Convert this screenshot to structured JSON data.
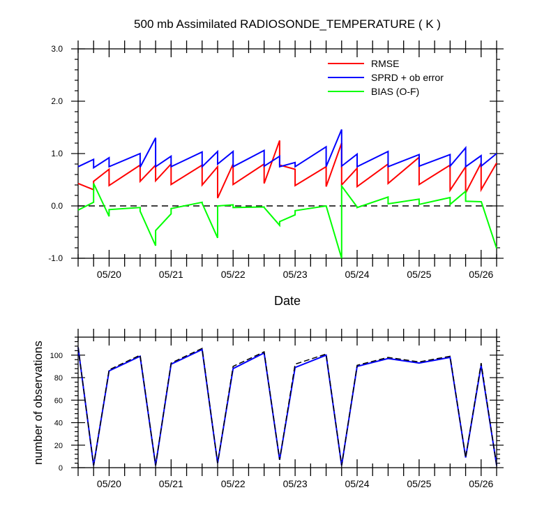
{
  "chart_data": [
    {
      "type": "line",
      "title": "500 mb Assimilated RADIOSONDE_TEMPERATURE ( K )",
      "xlabel": "Date",
      "ylabel": "",
      "ylim": [
        -1.0,
        3.0
      ],
      "yticks": [
        -1.0,
        0.0,
        1.0,
        2.0,
        3.0
      ],
      "ytick_labels": [
        "-1.0",
        "0.0",
        "1.0",
        "2.0",
        "3.0"
      ],
      "xlim": [
        "2014-05-19 12:00",
        "2014-05-26 06:00"
      ],
      "xtick_labels": [
        "05/20",
        "05/21",
        "05/22",
        "05/23",
        "05/24",
        "05/25",
        "05/26"
      ],
      "legend_position": "top-right",
      "reference_line": {
        "y": 0.0,
        "style": "dashed",
        "color": "#000000"
      },
      "series": [
        {
          "name": "RMSE",
          "color": "#ff0000",
          "x": [
            "2014-05-19 12:00",
            "2014-05-19 18:00",
            "2014-05-19 18:00",
            "2014-05-20 00:00",
            "2014-05-20 00:00",
            "2014-05-20 12:00",
            "2014-05-20 12:00",
            "2014-05-20 18:00",
            "2014-05-20 18:00",
            "2014-05-21 00:00",
            "2014-05-21 00:00",
            "2014-05-21 12:00",
            "2014-05-21 12:00",
            "2014-05-21 18:00",
            "2014-05-21 18:00",
            "2014-05-22 00:00",
            "2014-05-22 00:00",
            "2014-05-22 12:00",
            "2014-05-22 12:00",
            "2014-05-22 18:00",
            "2014-05-22 18:00",
            "2014-05-23 00:00",
            "2014-05-23 00:00",
            "2014-05-23 12:00",
            "2014-05-23 12:00",
            "2014-05-23 18:00",
            "2014-05-23 18:00",
            "2014-05-24 00:00",
            "2014-05-24 00:00",
            "2014-05-24 12:00",
            "2014-05-24 12:00",
            "2014-05-25 00:00",
            "2014-05-25 00:00",
            "2014-05-25 12:00",
            "2014-05-25 12:00",
            "2014-05-25 18:00",
            "2014-05-25 18:00",
            "2014-05-26 00:00",
            "2014-05-26 00:00",
            "2014-05-26 06:00"
          ],
          "y": [
            0.43,
            0.31,
            0.47,
            0.7,
            0.39,
            0.78,
            0.47,
            0.78,
            0.48,
            0.8,
            0.41,
            0.78,
            0.4,
            0.75,
            0.15,
            0.8,
            0.41,
            0.8,
            0.43,
            1.25,
            0.78,
            0.7,
            0.39,
            0.75,
            0.37,
            1.2,
            0.4,
            0.72,
            0.37,
            0.8,
            0.43,
            0.93,
            0.41,
            0.78,
            0.3,
            0.75,
            0.25,
            0.82,
            0.31,
            0.82
          ]
        },
        {
          "name": "SPRD + ob error",
          "color": "#0000ff",
          "x": [
            "2014-05-19 12:00",
            "2014-05-19 18:00",
            "2014-05-19 18:00",
            "2014-05-20 00:00",
            "2014-05-20 00:00",
            "2014-05-20 12:00",
            "2014-05-20 12:00",
            "2014-05-20 18:00",
            "2014-05-20 18:00",
            "2014-05-21 00:00",
            "2014-05-21 00:00",
            "2014-05-21 12:00",
            "2014-05-21 12:00",
            "2014-05-21 18:00",
            "2014-05-21 18:00",
            "2014-05-22 00:00",
            "2014-05-22 00:00",
            "2014-05-22 12:00",
            "2014-05-22 12:00",
            "2014-05-22 18:00",
            "2014-05-22 18:00",
            "2014-05-23 00:00",
            "2014-05-23 00:00",
            "2014-05-23 12:00",
            "2014-05-23 12:00",
            "2014-05-23 18:00",
            "2014-05-23 18:00",
            "2014-05-24 00:00",
            "2014-05-24 00:00",
            "2014-05-24 12:00",
            "2014-05-24 12:00",
            "2014-05-25 00:00",
            "2014-05-25 00:00",
            "2014-05-25 12:00",
            "2014-05-25 12:00",
            "2014-05-25 18:00",
            "2014-05-25 18:00",
            "2014-05-26 00:00",
            "2014-05-26 00:00",
            "2014-05-26 06:00"
          ],
          "y": [
            0.75,
            0.89,
            0.73,
            0.92,
            0.75,
            1.0,
            0.74,
            1.3,
            0.75,
            0.95,
            0.75,
            1.03,
            0.75,
            1.04,
            0.8,
            1.04,
            0.75,
            1.06,
            0.76,
            0.95,
            0.75,
            0.83,
            0.75,
            1.13,
            0.75,
            1.46,
            0.76,
            0.99,
            0.75,
            1.04,
            0.75,
            0.98,
            0.76,
            0.98,
            0.76,
            1.11,
            0.75,
            0.96,
            0.76,
            1.0
          ]
        },
        {
          "name": "BIAS (O-F)",
          "color": "#00ff00",
          "x": [
            "2014-05-19 12:00",
            "2014-05-19 18:00",
            "2014-05-19 18:00",
            "2014-05-20 00:00",
            "2014-05-20 00:00",
            "2014-05-20 12:00",
            "2014-05-20 12:00",
            "2014-05-20 18:00",
            "2014-05-20 18:00",
            "2014-05-21 00:00",
            "2014-05-21 00:00",
            "2014-05-21 12:00",
            "2014-05-21 12:00",
            "2014-05-21 18:00",
            "2014-05-21 18:00",
            "2014-05-22 00:00",
            "2014-05-22 00:00",
            "2014-05-22 12:00",
            "2014-05-22 12:00",
            "2014-05-22 18:00",
            "2014-05-22 18:00",
            "2014-05-23 00:00",
            "2014-05-23 00:00",
            "2014-05-23 12:00",
            "2014-05-23 12:00",
            "2014-05-23 18:00",
            "2014-05-23 18:00",
            "2014-05-24 00:00",
            "2014-05-24 00:00",
            "2014-05-24 12:00",
            "2014-05-24 12:00",
            "2014-05-25 00:00",
            "2014-05-25 00:00",
            "2014-05-25 12:00",
            "2014-05-25 12:00",
            "2014-05-25 18:00",
            "2014-05-25 18:00",
            "2014-05-26 00:00",
            "2014-05-26 00:00",
            "2014-05-26 06:00"
          ],
          "y": [
            -0.08,
            0.07,
            0.43,
            -0.2,
            -0.07,
            -0.03,
            -0.1,
            -0.76,
            -0.47,
            -0.15,
            -0.05,
            0.07,
            0.05,
            -0.61,
            0.0,
            0.02,
            -0.03,
            -0.02,
            -0.03,
            -0.37,
            -0.3,
            -0.17,
            -0.09,
            0.0,
            0.0,
            -1.0,
            0.38,
            -0.02,
            -0.03,
            0.17,
            0.04,
            0.13,
            0.03,
            0.16,
            0.03,
            0.28,
            0.09,
            0.08,
            0.09,
            -0.81
          ]
        }
      ]
    },
    {
      "type": "line",
      "title": "",
      "xlabel": "",
      "ylabel": "number of observations",
      "ylim": [
        0,
        116
      ],
      "yticks": [
        0,
        20,
        40,
        60,
        80,
        100
      ],
      "ytick_labels": [
        "0",
        "20",
        "40",
        "60",
        "80",
        "100"
      ],
      "xlim": [
        "2014-05-19 12:00",
        "2014-05-26 06:00"
      ],
      "xtick_labels": [
        "05/20",
        "05/21",
        "05/22",
        "05/23",
        "05/24",
        "05/25",
        "05/26"
      ],
      "series": [
        {
          "color": "#0000ff",
          "style": "solid",
          "x": [
            "2014-05-19 12:00",
            "2014-05-19 18:00",
            "2014-05-20 00:00",
            "2014-05-20 12:00",
            "2014-05-20 18:00",
            "2014-05-21 00:00",
            "2014-05-21 12:00",
            "2014-05-21 18:00",
            "2014-05-22 00:00",
            "2014-05-22 12:00",
            "2014-05-22 18:00",
            "2014-05-23 00:00",
            "2014-05-23 12:00",
            "2014-05-23 18:00",
            "2014-05-24 00:00",
            "2014-05-24 12:00",
            "2014-05-25 00:00",
            "2014-05-25 12:00",
            "2014-05-25 18:00",
            "2014-05-26 00:00",
            "2014-05-26 06:00"
          ],
          "y": [
            107,
            2,
            86,
            99,
            2,
            92,
            105,
            4,
            88,
            102,
            7,
            89,
            100,
            2,
            90,
            97,
            93,
            98,
            9,
            91,
            2
          ]
        },
        {
          "color": "#000000",
          "style": "dashed",
          "x": [
            "2014-05-19 12:00",
            "2014-05-19 18:00",
            "2014-05-20 00:00",
            "2014-05-20 12:00",
            "2014-05-20 18:00",
            "2014-05-21 00:00",
            "2014-05-21 12:00",
            "2014-05-21 18:00",
            "2014-05-22 00:00",
            "2014-05-22 12:00",
            "2014-05-22 18:00",
            "2014-05-23 00:00",
            "2014-05-23 12:00",
            "2014-05-23 18:00",
            "2014-05-24 00:00",
            "2014-05-24 12:00",
            "2014-05-25 00:00",
            "2014-05-25 12:00",
            "2014-05-25 18:00",
            "2014-05-26 00:00",
            "2014-05-26 06:00"
          ],
          "y": [
            107,
            2,
            87,
            100,
            2,
            93,
            106,
            4,
            90,
            103,
            7,
            92,
            101,
            2,
            91,
            98,
            94,
            99,
            9,
            93,
            2
          ]
        }
      ]
    }
  ]
}
